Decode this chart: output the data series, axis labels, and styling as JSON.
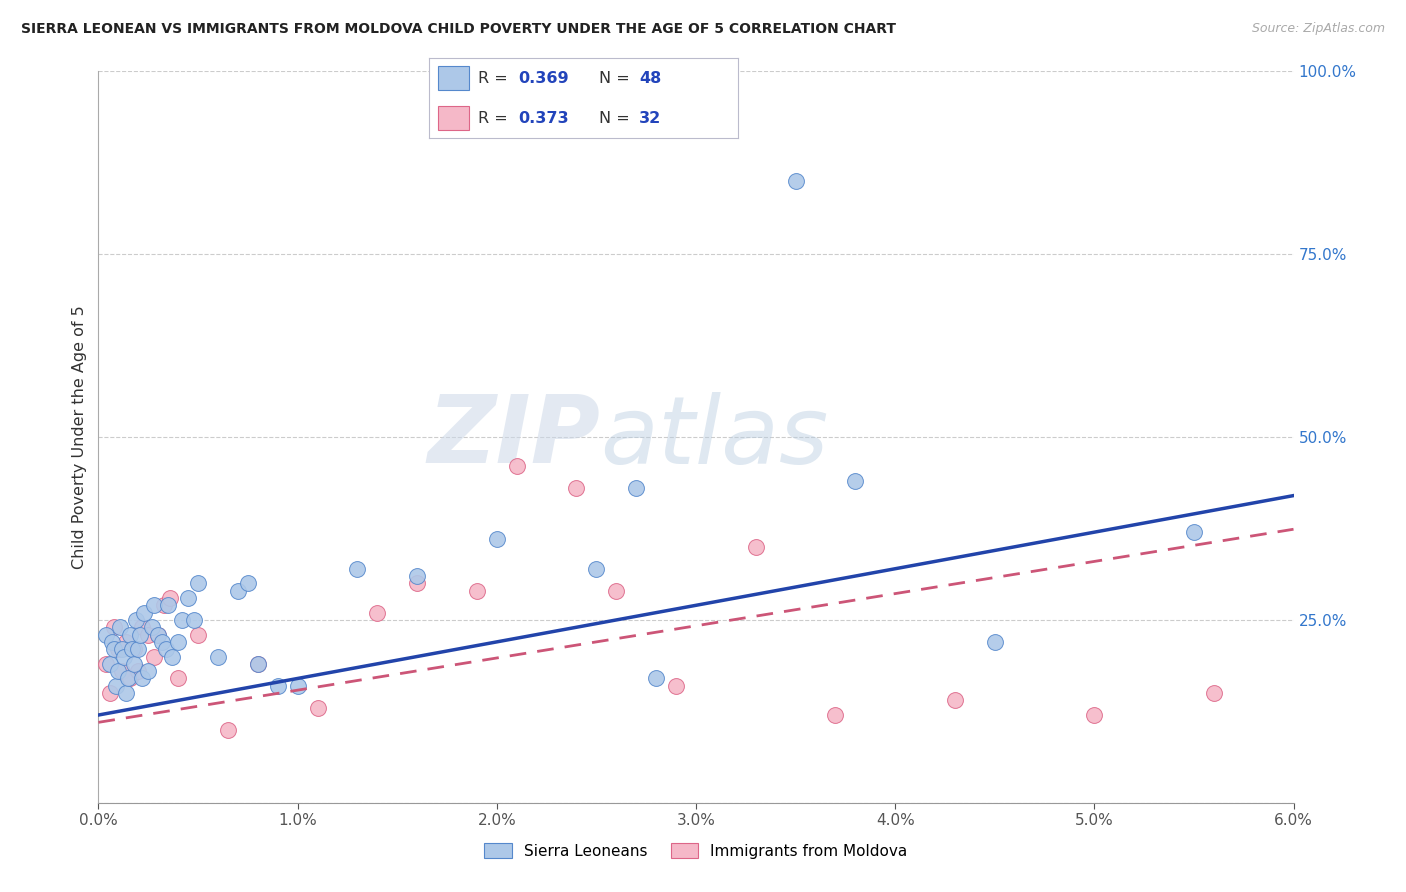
{
  "title": "SIERRA LEONEAN VS IMMIGRANTS FROM MOLDOVA CHILD POVERTY UNDER THE AGE OF 5 CORRELATION CHART",
  "source": "Source: ZipAtlas.com",
  "ylabel": "Child Poverty Under the Age of 5",
  "y_right_ticks": [
    0,
    25,
    50,
    75,
    100
  ],
  "y_right_labels": [
    "",
    "25.0%",
    "50.0%",
    "75.0%",
    "100.0%"
  ],
  "x_ticks": [
    0.0,
    1.0,
    2.0,
    3.0,
    4.0,
    5.0,
    6.0
  ],
  "x_tick_labels": [
    "0.0%",
    "1.0%",
    "2.0%",
    "3.0%",
    "4.0%",
    "5.0%",
    "6.0%"
  ],
  "xlim": [
    0.0,
    6.0
  ],
  "ylim": [
    0.0,
    100.0
  ],
  "sierra_r": 0.369,
  "sierra_n": 48,
  "moldova_r": 0.373,
  "moldova_n": 32,
  "sierra_color": "#adc8e8",
  "moldova_color": "#f5b8c8",
  "sierra_edge_color": "#5588cc",
  "moldova_edge_color": "#dd6688",
  "sierra_line_color": "#2244aa",
  "moldova_line_color": "#cc5577",
  "watermark_zip": "ZIP",
  "watermark_atlas": "atlas",
  "sierra_legend_label": "Sierra Leoneans",
  "moldova_legend_label": "Immigrants from Moldova",
  "sierra_x": [
    0.04,
    0.06,
    0.07,
    0.08,
    0.09,
    0.1,
    0.11,
    0.12,
    0.13,
    0.14,
    0.15,
    0.16,
    0.17,
    0.18,
    0.19,
    0.2,
    0.21,
    0.22,
    0.23,
    0.25,
    0.27,
    0.28,
    0.3,
    0.32,
    0.34,
    0.35,
    0.37,
    0.4,
    0.42,
    0.45,
    0.48,
    0.5,
    0.6,
    0.7,
    0.75,
    0.8,
    0.9,
    1.0,
    1.3,
    1.6,
    2.0,
    2.5,
    2.7,
    3.5,
    3.8,
    4.5,
    5.5,
    2.8
  ],
  "sierra_y": [
    23,
    19,
    22,
    21,
    16,
    18,
    24,
    21,
    20,
    15,
    17,
    23,
    21,
    19,
    25,
    21,
    23,
    17,
    26,
    18,
    24,
    27,
    23,
    22,
    21,
    27,
    20,
    22,
    25,
    28,
    25,
    30,
    20,
    29,
    30,
    19,
    16,
    16,
    32,
    31,
    36,
    32,
    43,
    85,
    44,
    22,
    37,
    17
  ],
  "moldova_x": [
    0.04,
    0.06,
    0.08,
    0.1,
    0.12,
    0.14,
    0.16,
    0.18,
    0.2,
    0.22,
    0.25,
    0.28,
    0.3,
    0.33,
    0.36,
    0.4,
    0.5,
    0.65,
    0.8,
    1.1,
    1.4,
    1.6,
    1.9,
    2.1,
    2.4,
    2.6,
    2.9,
    3.3,
    3.7,
    4.3,
    5.0,
    5.6
  ],
  "moldova_y": [
    19,
    15,
    24,
    21,
    18,
    22,
    17,
    21,
    18,
    24,
    23,
    20,
    23,
    27,
    28,
    17,
    23,
    10,
    19,
    13,
    26,
    30,
    29,
    46,
    43,
    29,
    16,
    35,
    12,
    14,
    12,
    15
  ]
}
